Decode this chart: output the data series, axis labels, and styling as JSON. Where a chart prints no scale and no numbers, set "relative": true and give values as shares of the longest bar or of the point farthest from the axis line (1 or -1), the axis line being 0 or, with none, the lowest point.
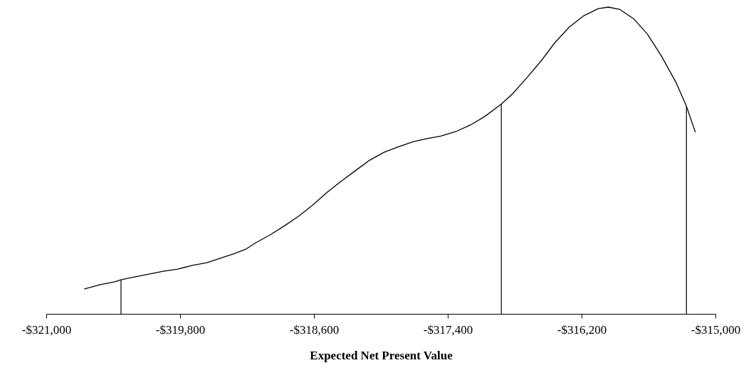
{
  "chart_data": {
    "type": "line",
    "xlabel": "Expected Net Present Value",
    "relative": true,
    "grid": false,
    "marker": "none",
    "line_style": "solid",
    "xlim": [
      -321000,
      -315000
    ],
    "xticks": [
      {
        "value": -321000,
        "label": "-$321,000"
      },
      {
        "value": -319800,
        "label": "-$319,800"
      },
      {
        "value": -318600,
        "label": "-$318,600"
      },
      {
        "value": -317400,
        "label": "-$317,400"
      },
      {
        "value": -316200,
        "label": "-$316,200"
      },
      {
        "value": -315000,
        "label": "-$315,000"
      }
    ],
    "x": [
      -320660,
      -320520,
      -320390,
      -320330,
      -320200,
      -320070,
      -319950,
      -319820,
      -319690,
      -319560,
      -319440,
      -319310,
      -319210,
      -319120,
      -318990,
      -318860,
      -318730,
      -318610,
      -318480,
      -318350,
      -318220,
      -318100,
      -317970,
      -317840,
      -317710,
      -317590,
      -317460,
      -317330,
      -317200,
      -317070,
      -316920,
      -316820,
      -316690,
      -316560,
      -316440,
      -316310,
      -316180,
      -316050,
      -315960,
      -315860,
      -315730,
      -315610,
      -315480,
      -315350,
      -315260,
      -315180
    ],
    "series": [
      {
        "color": "#000000",
        "values": [
          0.081,
          0.095,
          0.104,
          0.111,
          0.121,
          0.13,
          0.139,
          0.146,
          0.158,
          0.167,
          0.181,
          0.197,
          0.211,
          0.232,
          0.258,
          0.288,
          0.32,
          0.355,
          0.397,
          0.434,
          0.469,
          0.501,
          0.527,
          0.545,
          0.561,
          0.571,
          0.58,
          0.594,
          0.615,
          0.643,
          0.684,
          0.717,
          0.77,
          0.826,
          0.884,
          0.935,
          0.972,
          0.995,
          1,
          0.993,
          0.961,
          0.912,
          0.838,
          0.752,
          0.677,
          0.592
        ]
      }
    ],
    "ref_lines": [
      {
        "axis": "x",
        "value": -320330,
        "color": "#000000"
      },
      {
        "axis": "x",
        "value": -316920,
        "color": "#000000"
      },
      {
        "axis": "x",
        "value": -315260,
        "color": "#000000"
      }
    ]
  }
}
